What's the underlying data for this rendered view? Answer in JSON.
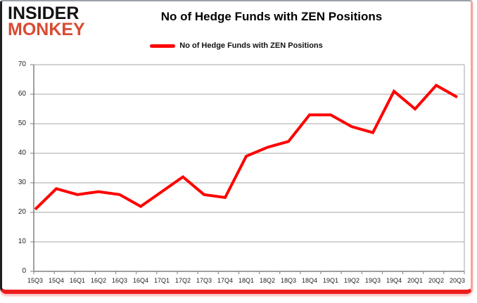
{
  "logo": {
    "line1": "INSIDER",
    "line2": "MONKEY"
  },
  "header": {
    "title": "No of Hedge Funds with ZEN Positions"
  },
  "legend": {
    "label": "No of Hedge Funds with ZEN Positions",
    "swatch_color": "#FF0000"
  },
  "chart_data": {
    "type": "line",
    "title": "No of Hedge Funds with ZEN Positions",
    "categories": [
      "15Q3",
      "15Q4",
      "16Q1",
      "16Q2",
      "16Q3",
      "16Q4",
      "17Q1",
      "17Q2",
      "17Q3",
      "17Q4",
      "18Q1",
      "18Q2",
      "18Q3",
      "18Q4",
      "19Q1",
      "19Q2",
      "19Q3",
      "19Q4",
      "20Q1",
      "20Q2",
      "20Q3"
    ],
    "series": [
      {
        "name": "No of Hedge Funds with ZEN Positions",
        "color": "#FF0000",
        "values": [
          21,
          28,
          26,
          27,
          26,
          22,
          27,
          32,
          26,
          25,
          39,
          42,
          44,
          53,
          53,
          49,
          47,
          61,
          55,
          63,
          59
        ]
      }
    ],
    "xlabel": "",
    "ylabel": "",
    "ylim": [
      0,
      70
    ],
    "ytick_interval": 10,
    "grid": "horizontal",
    "legend_position": "top-center"
  },
  "colors": {
    "line": "#FF0000",
    "grid": "#a6a6a6",
    "axis": "#808080",
    "logo_black": "#121212",
    "logo_red": "#D74B32",
    "border_bottom": "#EE1C1C",
    "text": "#000000"
  }
}
